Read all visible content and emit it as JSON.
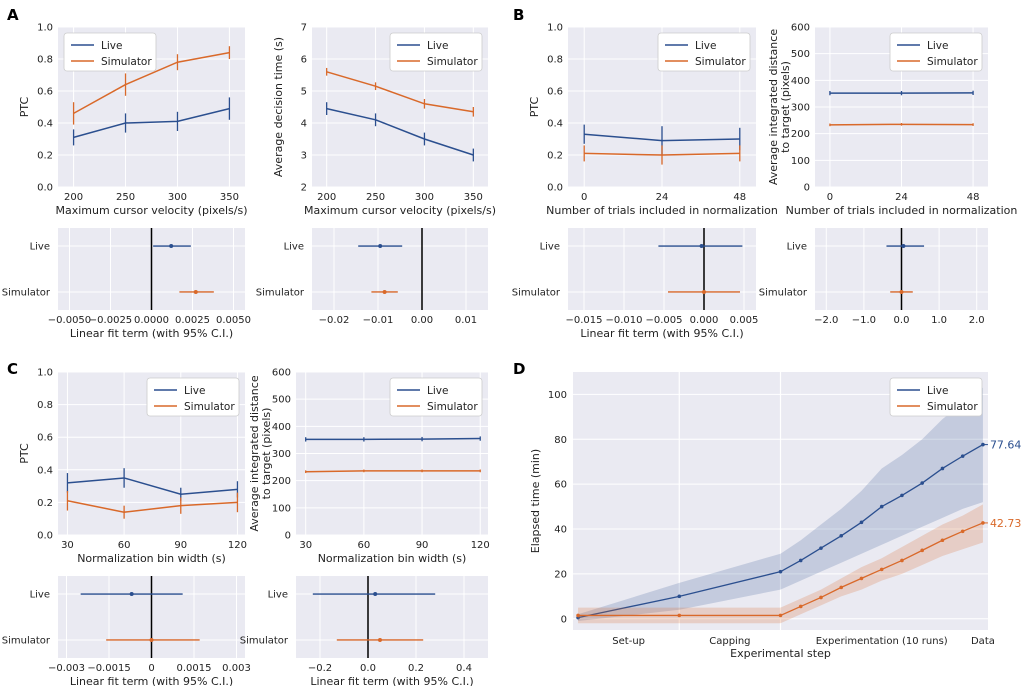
{
  "colors": {
    "live": "#2b4f8f",
    "simulator": "#d9692a",
    "background": "#eaeaf2",
    "grid": "#ffffff"
  },
  "panel_letters": [
    "A",
    "B",
    "C",
    "D"
  ],
  "chart_data": [
    {
      "id": "A1",
      "panel": "A",
      "type": "line",
      "xlabel": "Maximum cursor velocity (pixels/s)",
      "ylabel": "PTC",
      "x": [
        200,
        250,
        300,
        350
      ],
      "xlim": [
        185,
        365
      ],
      "ylim": [
        0,
        1.0
      ],
      "xticks": [
        200,
        250,
        300,
        350
      ],
      "xtick_labels": [
        "200",
        "250",
        "300",
        "350"
      ],
      "yticks": [
        0,
        0.2,
        0.4,
        0.6,
        0.8,
        1.0
      ],
      "ytick_labels": [
        "0.0",
        "0.2",
        "0.4",
        "0.6",
        "0.8",
        "1.0"
      ],
      "legend": "top-left",
      "series": [
        {
          "name": "Live",
          "values": [
            0.31,
            0.4,
            0.41,
            0.49
          ],
          "err": [
            0.05,
            0.06,
            0.06,
            0.07
          ]
        },
        {
          "name": "Simulator",
          "values": [
            0.46,
            0.64,
            0.78,
            0.84
          ],
          "err": [
            0.07,
            0.07,
            0.05,
            0.04
          ]
        }
      ]
    },
    {
      "id": "A2",
      "panel": "A",
      "type": "line",
      "xlabel": "Maximum cursor velocity (pixels/s)",
      "ylabel": "Average decision time (s)",
      "x": [
        200,
        250,
        300,
        350
      ],
      "xlim": [
        185,
        365
      ],
      "ylim": [
        2,
        7
      ],
      "xticks": [
        200,
        250,
        300,
        350
      ],
      "xtick_labels": [
        "200",
        "250",
        "300",
        "350"
      ],
      "yticks": [
        2,
        3,
        4,
        5,
        6,
        7
      ],
      "ytick_labels": [
        "2",
        "3",
        "4",
        "5",
        "6",
        "7"
      ],
      "legend": "top-right",
      "series": [
        {
          "name": "Live",
          "values": [
            4.45,
            4.1,
            3.5,
            3.0
          ],
          "err": [
            0.2,
            0.2,
            0.2,
            0.2
          ]
        },
        {
          "name": "Simulator",
          "values": [
            5.6,
            5.15,
            4.6,
            4.35
          ],
          "err": [
            0.12,
            0.12,
            0.15,
            0.15
          ]
        }
      ]
    },
    {
      "id": "A3",
      "panel": "A",
      "type": "scatter",
      "xlabel": "Linear fit term (with 95% C.I.)",
      "xlim": [
        -0.0057,
        0.0057
      ],
      "xticks": [
        -0.005,
        -0.0025,
        0,
        0.0025,
        0.005
      ],
      "xtick_labels": [
        "−0.0050",
        "−0.0025",
        "0.0000",
        "0.0025",
        "0.0050"
      ],
      "rows": [
        "Live",
        "Simulator"
      ],
      "estimates": [
        {
          "name": "Live",
          "value": 0.0012,
          "lo": 0.0001,
          "hi": 0.0024
        },
        {
          "name": "Simulator",
          "value": 0.0027,
          "lo": 0.0017,
          "hi": 0.0038
        }
      ]
    },
    {
      "id": "A4",
      "panel": "A",
      "type": "scatter",
      "xlabel": "",
      "xlim": [
        -0.025,
        0.015
      ],
      "xticks": [
        -0.02,
        -0.01,
        0,
        0.01
      ],
      "xtick_labels": [
        "−0.02",
        "−0.01",
        "0.00",
        "0.01"
      ],
      "rows": [
        "Live",
        "Simulator"
      ],
      "estimates": [
        {
          "name": "Live",
          "value": -0.0095,
          "lo": -0.0145,
          "hi": -0.0045
        },
        {
          "name": "Simulator",
          "value": -0.0085,
          "lo": -0.0115,
          "hi": -0.0055
        }
      ]
    },
    {
      "id": "B1",
      "panel": "B",
      "type": "line",
      "xlabel": "Number of trials included in normalization",
      "ylabel": "PTC",
      "x": [
        0,
        24,
        48
      ],
      "xlim": [
        -5,
        53
      ],
      "ylim": [
        0,
        1.0
      ],
      "xticks": [
        0,
        24,
        48
      ],
      "xtick_labels": [
        "0",
        "24",
        "48"
      ],
      "yticks": [
        0,
        0.2,
        0.4,
        0.6,
        0.8,
        1.0
      ],
      "ytick_labels": [
        "0.0",
        "0.2",
        "0.4",
        "0.6",
        "0.8",
        "1.0"
      ],
      "legend": "top-right",
      "series": [
        {
          "name": "Live",
          "values": [
            0.33,
            0.29,
            0.3
          ],
          "err": [
            0.06,
            0.09,
            0.07
          ]
        },
        {
          "name": "Simulator",
          "values": [
            0.21,
            0.2,
            0.21
          ],
          "err": [
            0.05,
            0.06,
            0.05
          ]
        }
      ]
    },
    {
      "id": "B2",
      "panel": "B",
      "type": "line",
      "xlabel": "Number of trials included in normalization",
      "ylabel": "Average integrated distance to target (pixels)",
      "x": [
        0,
        24,
        48
      ],
      "xlim": [
        -5,
        53
      ],
      "ylim": [
        0,
        600
      ],
      "xticks": [
        0,
        24,
        48
      ],
      "xtick_labels": [
        "0",
        "24",
        "48"
      ],
      "yticks": [
        0,
        100,
        200,
        300,
        400,
        500,
        600
      ],
      "ytick_labels": [
        "0",
        "100",
        "200",
        "300",
        "400",
        "500",
        "600"
      ],
      "legend": "top-right",
      "series": [
        {
          "name": "Live",
          "values": [
            352,
            352,
            353
          ],
          "err": [
            8,
            8,
            8
          ]
        },
        {
          "name": "Simulator",
          "values": [
            233,
            235,
            234
          ],
          "err": [
            5,
            5,
            5
          ]
        }
      ]
    },
    {
      "id": "B3",
      "panel": "B",
      "type": "scatter",
      "xlabel": "Linear fit term (with 95% C.I.)",
      "xlim": [
        -0.017,
        0.0065
      ],
      "xticks": [
        -0.015,
        -0.01,
        -0.005,
        0,
        0.005
      ],
      "xtick_labels": [
        "−0.015",
        "−0.010",
        "−0.005",
        "0.000",
        "0.005"
      ],
      "rows": [
        "Live",
        "Simulator"
      ],
      "estimates": [
        {
          "name": "Live",
          "value": -0.0003,
          "lo": -0.0057,
          "hi": 0.0048
        },
        {
          "name": "Simulator",
          "value": 0.0,
          "lo": -0.0045,
          "hi": 0.0045
        }
      ]
    },
    {
      "id": "B4",
      "panel": "B",
      "type": "scatter",
      "xlabel": "",
      "xlim": [
        -2.3,
        2.3
      ],
      "xticks": [
        -2,
        -1,
        0,
        1,
        2
      ],
      "xtick_labels": [
        "−2.0",
        "−1.0",
        "0.0",
        "1.0",
        "2.0"
      ],
      "rows": [
        "Live",
        "Simulator"
      ],
      "estimates": [
        {
          "name": "Live",
          "value": 0.05,
          "lo": -0.4,
          "hi": 0.6
        },
        {
          "name": "Simulator",
          "value": 0.0,
          "lo": -0.3,
          "hi": 0.3
        }
      ]
    },
    {
      "id": "C1",
      "panel": "C",
      "type": "line",
      "xlabel": "Normalization bin width (s)",
      "ylabel": "PTC",
      "x": [
        30,
        60,
        90,
        120
      ],
      "xlim": [
        25,
        124
      ],
      "ylim": [
        0,
        1.0
      ],
      "xticks": [
        30,
        60,
        90,
        120
      ],
      "xtick_labels": [
        "30",
        "60",
        "90",
        "120"
      ],
      "yticks": [
        0,
        0.2,
        0.4,
        0.6,
        0.8,
        1.0
      ],
      "ytick_labels": [
        "0.0",
        "0.2",
        "0.4",
        "0.6",
        "0.8",
        "1.0"
      ],
      "legend": "top-right",
      "series": [
        {
          "name": "Live",
          "values": [
            0.32,
            0.35,
            0.25,
            0.28
          ],
          "err": [
            0.06,
            0.06,
            0.04,
            0.05
          ]
        },
        {
          "name": "Simulator",
          "values": [
            0.21,
            0.14,
            0.18,
            0.2
          ],
          "err": [
            0.06,
            0.04,
            0.05,
            0.06
          ]
        }
      ]
    },
    {
      "id": "C2",
      "panel": "C",
      "type": "line",
      "xlabel": "Normalization bin width (s)",
      "ylabel": "Average integrated distance to target (pixels)",
      "x": [
        30,
        60,
        90,
        120
      ],
      "xlim": [
        25,
        124
      ],
      "ylim": [
        0,
        600
      ],
      "xticks": [
        30,
        60,
        90,
        120
      ],
      "xtick_labels": [
        "30",
        "60",
        "90",
        "120"
      ],
      "yticks": [
        0,
        100,
        200,
        300,
        400,
        500,
        600
      ],
      "ytick_labels": [
        "0",
        "100",
        "200",
        "300",
        "400",
        "500",
        "600"
      ],
      "legend": "top-right",
      "series": [
        {
          "name": "Live",
          "values": [
            352,
            352,
            353,
            355
          ],
          "err": [
            8,
            8,
            8,
            8
          ]
        },
        {
          "name": "Simulator",
          "values": [
            233,
            236,
            236,
            236
          ],
          "err": [
            5,
            5,
            5,
            5
          ]
        }
      ]
    },
    {
      "id": "C3",
      "panel": "C",
      "type": "scatter",
      "xlabel": "Linear fit term (with 95% C.I.)",
      "xlim": [
        -0.0033,
        0.0033
      ],
      "xticks": [
        -0.003,
        -0.0015,
        0,
        0.0015,
        0.003
      ],
      "xtick_labels": [
        "−0.003",
        "−0.0015",
        "0",
        "0.0015",
        "0.003"
      ],
      "rows": [
        "Live",
        "Simulator"
      ],
      "estimates": [
        {
          "name": "Live",
          "value": -0.0007,
          "lo": -0.0025,
          "hi": 0.0011
        },
        {
          "name": "Simulator",
          "value": 0.0,
          "lo": -0.0016,
          "hi": 0.0017
        }
      ]
    },
    {
      "id": "C4",
      "panel": "C",
      "type": "scatter",
      "xlabel": "Linear fit term (with 95% C.I.)",
      "xlim": [
        -0.3,
        0.5
      ],
      "xticks": [
        -0.2,
        0,
        0.2,
        0.4
      ],
      "xtick_labels": [
        "−0.2",
        "0.0",
        "0.2",
        "0.4"
      ],
      "rows": [
        "Live",
        "Simulator"
      ],
      "estimates": [
        {
          "name": "Live",
          "value": 0.03,
          "lo": -0.23,
          "hi": 0.28
        },
        {
          "name": "Simulator",
          "value": 0.05,
          "lo": -0.13,
          "hi": 0.23
        }
      ]
    },
    {
      "id": "D",
      "panel": "D",
      "type": "area",
      "xlabel": "Experimental step",
      "ylabel": "Elapsed time (min)",
      "xlim": [
        -0.05,
        4.05
      ],
      "ylim": [
        -5,
        110
      ],
      "yticks": [
        0,
        20,
        40,
        60,
        80,
        100
      ],
      "ytick_labels": [
        "0",
        "20",
        "40",
        "60",
        "80",
        "100"
      ],
      "xtick_labels": [
        "Set-up",
        "Capping",
        "Experimentation (10 runs)",
        "Data"
      ],
      "xtick_positions": [
        0.5,
        1.5,
        3,
        4
      ],
      "vlines": [
        1,
        2
      ],
      "legend": "top-right",
      "end_labels": [
        "77.64",
        "42.73"
      ],
      "x": [
        0,
        1,
        2,
        2.2,
        2.4,
        2.6,
        2.8,
        3.0,
        3.2,
        3.4,
        3.6,
        3.8,
        4.0
      ],
      "series": [
        {
          "name": "Live",
          "values": [
            0.5,
            10,
            21,
            26,
            31.5,
            37,
            43,
            50,
            55,
            60.5,
            67,
            72.5,
            77.64
          ],
          "lo": [
            -1,
            4,
            13,
            17,
            21,
            25,
            29,
            33,
            37,
            41,
            45,
            49,
            52
          ],
          "hi": [
            2,
            16,
            29,
            35,
            42,
            49,
            57,
            67,
            73,
            80,
            89,
            96,
            103
          ]
        },
        {
          "name": "Simulator",
          "values": [
            1.5,
            1.5,
            1.5,
            5.5,
            9.5,
            14,
            18,
            22,
            26,
            30.5,
            35,
            39,
            42.73
          ],
          "lo": [
            -2,
            -2,
            -2,
            2,
            6,
            10,
            13,
            17,
            20,
            24,
            28,
            31,
            34
          ],
          "hi": [
            5,
            5,
            5,
            9,
            13,
            18,
            23,
            27,
            32,
            37,
            42,
            46,
            51
          ]
        }
      ]
    }
  ]
}
